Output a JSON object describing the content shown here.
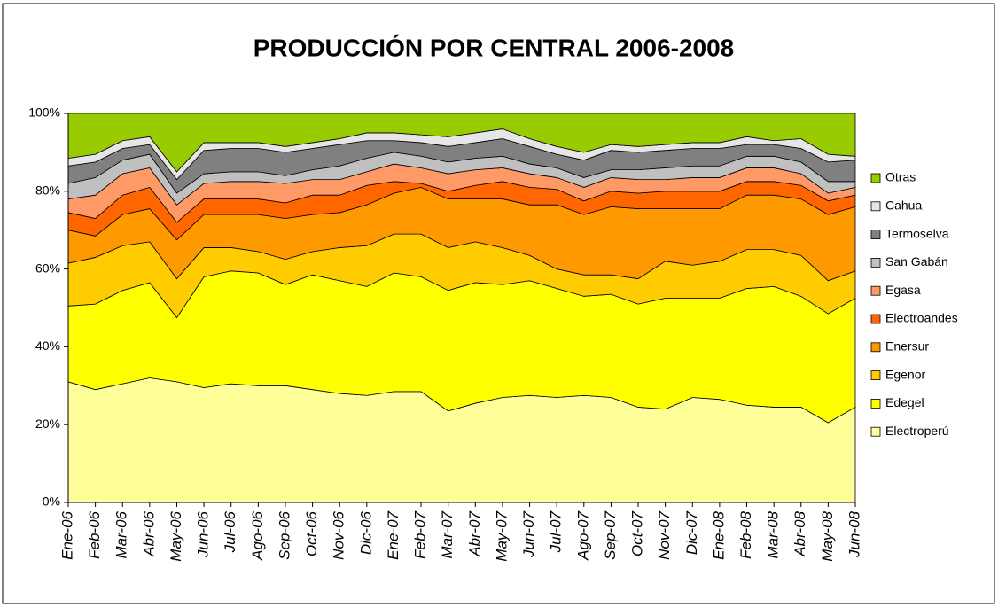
{
  "chart_data": {
    "type": "stacked_area",
    "title": "PRODUCCIÓN POR CENTRAL 2006-2008",
    "categories": [
      "Ene-06",
      "Feb-06",
      "Mar-06",
      "Abr-06",
      "May-06",
      "Jun-06",
      "Jul-06",
      "Ago-06",
      "Sep-06",
      "Oct-06",
      "Nov-06",
      "Dic-06",
      "Ene-07",
      "Feb-07",
      "Mar-07",
      "Abr-07",
      "May-07",
      "Jun-07",
      "Jul-07",
      "Ago-07",
      "Sep-07",
      "Oct-07",
      "Nov-07",
      "Dic-07",
      "Ene-08",
      "Feb-08",
      "Mar-08",
      "Abr-08",
      "May-08",
      "Jun-08"
    ],
    "series": [
      {
        "name": "Electroperú",
        "color": "#FFFF99",
        "values": [
          31,
          29,
          30.5,
          32,
          31,
          29.5,
          30.5,
          30,
          30,
          29,
          28,
          27.5,
          28.5,
          28.5,
          23.5,
          25.5,
          27,
          27.5,
          27,
          27.5,
          27,
          24.5,
          24,
          27,
          26.5,
          25,
          24.5,
          24.5,
          20.5,
          24.5
        ]
      },
      {
        "name": "Edegel",
        "color": "#FFFF00",
        "values": [
          19.5,
          22,
          24,
          24.5,
          16.5,
          28.5,
          29,
          29,
          26,
          29.5,
          29,
          28,
          30.5,
          29.5,
          31,
          31,
          29,
          29.5,
          28,
          25.5,
          26.5,
          26.5,
          28.5,
          25.5,
          26,
          30,
          31,
          28.5,
          28,
          28
        ]
      },
      {
        "name": "Egenor",
        "color": "#FFCC00",
        "values": [
          11,
          12,
          11.5,
          10.5,
          10,
          7.5,
          6,
          5.5,
          6.5,
          6,
          8.5,
          10.5,
          10,
          11,
          11,
          10.5,
          9.5,
          6.5,
          5,
          5.5,
          5,
          6.5,
          9.5,
          8.5,
          9.5,
          10,
          9.5,
          10.5,
          8.5,
          7
        ]
      },
      {
        "name": "Enersur",
        "color": "#FF9900",
        "values": [
          8.5,
          5.5,
          8,
          8.5,
          10,
          8.5,
          8.5,
          9.5,
          10.5,
          9.5,
          9,
          10.5,
          10.5,
          12,
          12.5,
          11,
          12.5,
          13,
          16.5,
          15.5,
          17.5,
          18,
          13.5,
          14.5,
          13.5,
          14,
          14,
          14.5,
          17,
          16.5
        ]
      },
      {
        "name": "Electroandes",
        "color": "#FF6600",
        "values": [
          4.5,
          4.5,
          5,
          5.5,
          4.5,
          4,
          4,
          4,
          4,
          5,
          4.5,
          5,
          3,
          1,
          2,
          3.5,
          4.5,
          4.5,
          4,
          3.5,
          4,
          4,
          4.5,
          4.5,
          4.5,
          3.5,
          3.5,
          3.5,
          3.5,
          3
        ]
      },
      {
        "name": "Egasa",
        "color": "#FF9966",
        "values": [
          3.5,
          6,
          5.5,
          5,
          4.5,
          4,
          4.5,
          4.5,
          5,
          4,
          4,
          3.5,
          4.5,
          4,
          4.5,
          4,
          3.5,
          3.5,
          3,
          3.5,
          3.5,
          3.5,
          3,
          3.5,
          3.5,
          3.5,
          3.5,
          3,
          2,
          2
        ]
      },
      {
        "name": "San Gabán",
        "color": "#C0C0C0",
        "values": [
          4,
          4.5,
          3.5,
          3.5,
          3,
          2.5,
          2.5,
          2.5,
          2,
          2.5,
          3.5,
          3.5,
          3,
          3,
          3,
          3,
          3,
          2.5,
          2.5,
          2.5,
          2,
          2.5,
          3,
          3,
          3,
          3,
          3,
          3,
          3,
          1.5
        ]
      },
      {
        "name": "Termoselva",
        "color": "#808080",
        "values": [
          4.5,
          4,
          3,
          2.5,
          3.5,
          6,
          6,
          6,
          6,
          5.5,
          5.5,
          4.5,
          3,
          3.5,
          4,
          4,
          4.5,
          4.5,
          3.5,
          4.5,
          5,
          4.5,
          4.5,
          4.5,
          4.5,
          3,
          3,
          3.5,
          5,
          5.5
        ]
      },
      {
        "name": "Cahua",
        "color": "#E6E6E6",
        "values": [
          2,
          2,
          2,
          2,
          2,
          2,
          1.5,
          1.5,
          1.5,
          1.5,
          1.5,
          2,
          2,
          2,
          2.5,
          2.5,
          2.5,
          2,
          2,
          2,
          1.5,
          1.5,
          1.5,
          1.5,
          1.5,
          2,
          1,
          2.5,
          2,
          1
        ]
      },
      {
        "name": "Otras",
        "color": "#99CC00",
        "values": [
          11.5,
          10.5,
          7,
          6,
          15,
          7.5,
          7.5,
          7.5,
          8.5,
          7.5,
          6.5,
          5,
          5,
          5.5,
          6,
          5,
          4,
          6.5,
          8.5,
          10,
          8,
          8.5,
          8,
          7.5,
          7.5,
          6,
          7,
          6.5,
          10.5,
          11
        ]
      }
    ],
    "ylim": [
      0,
      100
    ],
    "yticks": [
      {
        "value": 0,
        "label": "0%"
      },
      {
        "value": 20,
        "label": "20%"
      },
      {
        "value": 40,
        "label": "40%"
      },
      {
        "value": 60,
        "label": "60%"
      },
      {
        "value": 80,
        "label": "80%"
      },
      {
        "value": 100,
        "label": "100%"
      }
    ],
    "legend": "right"
  }
}
